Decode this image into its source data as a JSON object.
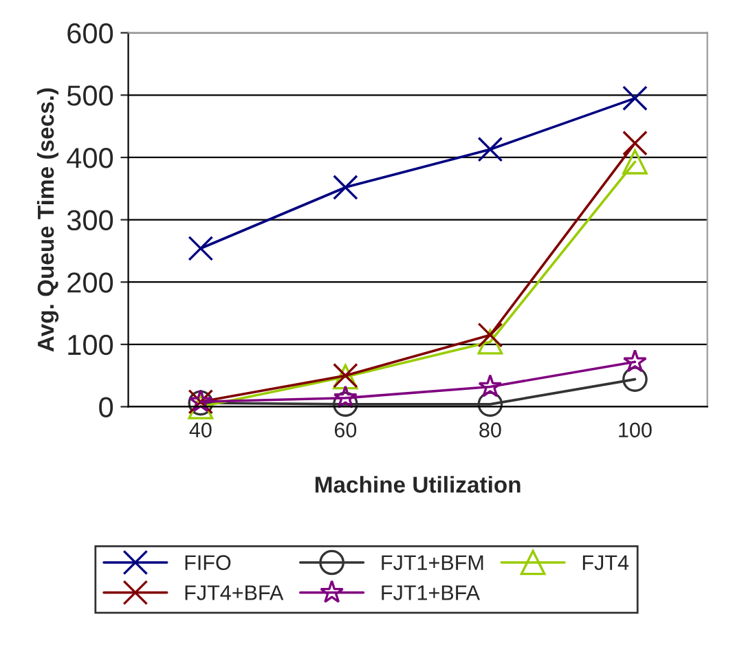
{
  "chart_data": {
    "type": "line",
    "xlabel": "Machine Utilization",
    "ylabel": "Avg. Queue Time (secs.)",
    "categories": [
      "40",
      "60",
      "80",
      "100"
    ],
    "series": [
      {
        "name": "FIFO",
        "color": "#000080",
        "marker": "cross",
        "values": [
          254,
          352,
          413,
          495
        ]
      },
      {
        "name": "FJT1+BFM",
        "color": "#333333",
        "marker": "circle",
        "values": [
          6,
          4,
          4,
          44
        ]
      },
      {
        "name": "FJT4",
        "color": "#99cc00",
        "marker": "triangle",
        "values": [
          0,
          48,
          104,
          393
        ]
      },
      {
        "name": "FJT4+BFA",
        "color": "#800000",
        "marker": "cross",
        "values": [
          8,
          50,
          115,
          423
        ]
      },
      {
        "name": "FJT1+BFA",
        "color": "#800080",
        "marker": "star",
        "values": [
          8,
          14,
          32,
          72
        ]
      }
    ],
    "ylim": [
      0,
      600
    ],
    "yticks": [
      0,
      100,
      200,
      300,
      400,
      500,
      600
    ],
    "grid": "y",
    "legend": "bottom"
  }
}
